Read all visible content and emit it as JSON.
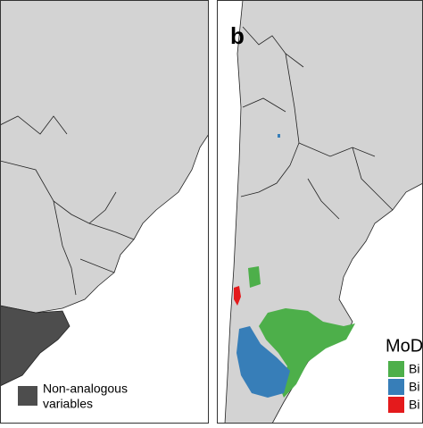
{
  "panels": [
    {
      "legend": {
        "label_lines": [
          "Non-analogous",
          "variables"
        ],
        "color": "#4d4d4d"
      }
    },
    {
      "label": "b",
      "legend": {
        "title": "MoD",
        "items": [
          {
            "label": "Bi",
            "color": "#4daf4a"
          },
          {
            "label": "Bi",
            "color": "#377eb8"
          },
          {
            "label": "Bi",
            "color": "#e41a1c"
          }
        ]
      }
    }
  ]
}
